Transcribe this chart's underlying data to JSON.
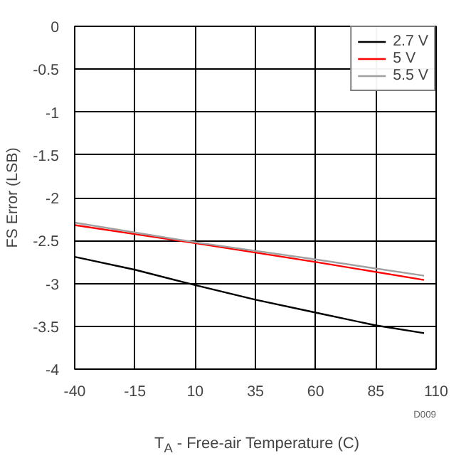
{
  "chart_data": {
    "type": "line",
    "xlabel": "T$_{A}$ - Free-air Temperature (C)",
    "ylabel": "FS Error (LSB)",
    "xlim": [
      -40,
      110
    ],
    "xticks": [
      -40,
      -15,
      10,
      35,
      60,
      85,
      110
    ],
    "ylim": [
      -4,
      0
    ],
    "yticks": [
      -4,
      -3.5,
      -3,
      -2.5,
      -2,
      -1.5,
      -1,
      -0.5,
      0
    ],
    "grid": true,
    "legend": "top right",
    "annotations": [
      "D009"
    ],
    "series": [
      {
        "name": "2.7 V",
        "color": "#000000",
        "x": [
          -40,
          -15,
          10,
          35,
          60,
          85,
          105
        ],
        "values": [
          -2.69,
          -2.84,
          -3.02,
          -3.19,
          -3.34,
          -3.49,
          -3.58
        ]
      },
      {
        "name": "5 V",
        "color": "#ff0000",
        "x": [
          -40,
          10,
          60,
          105
        ],
        "values": [
          -2.32,
          -2.53,
          -2.75,
          -2.96
        ]
      },
      {
        "name": "5.5 V",
        "color": "#a0a0a0",
        "x": [
          -40,
          10,
          60,
          105
        ],
        "values": [
          -2.29,
          -2.52,
          -2.72,
          -2.91
        ]
      }
    ]
  }
}
